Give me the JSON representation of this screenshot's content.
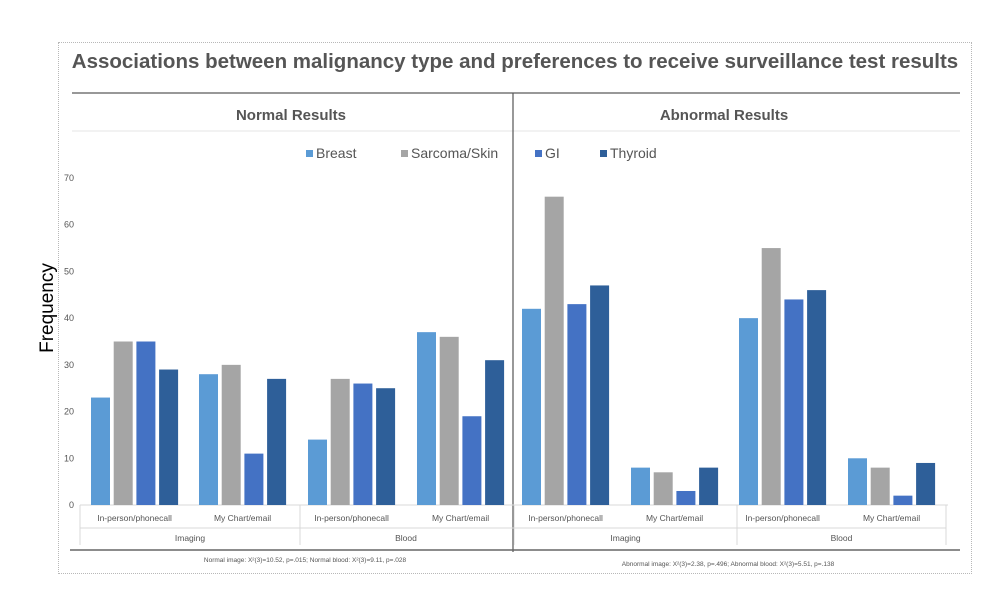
{
  "title": "Associations between malignancy type and preferences to receive surveillance test results",
  "chart_data": {
    "type": "bar",
    "ylabel": "Frequency",
    "ylim": [
      0,
      70
    ],
    "yticks": [
      0,
      10,
      20,
      30,
      40,
      50,
      60,
      70
    ],
    "legend_position": "top-center",
    "series": [
      {
        "name": "Breast",
        "color": "#5b9bd5"
      },
      {
        "name": "Sarcoma/Skin",
        "color": "#a5a5a5"
      },
      {
        "name": "GI",
        "color": "#4472c4"
      },
      {
        "name": "Thyroid",
        "color": "#2e5f99"
      }
    ],
    "panels": [
      {
        "title": "Normal Results",
        "stats": "Normal image: X²(3)=10.52, p=.015; Normal blood: X²(3)=9.11, p=.028",
        "groups": [
          {
            "name": "Imaging",
            "categories": [
              {
                "label": "In-person/phonecall",
                "values": [
                  23,
                  35,
                  35,
                  29
                ]
              },
              {
                "label": "My Chart/email",
                "values": [
                  28,
                  30,
                  11,
                  27
                ]
              }
            ]
          },
          {
            "name": "Blood",
            "categories": [
              {
                "label": "In-person/phonecall",
                "values": [
                  14,
                  27,
                  26,
                  25
                ]
              },
              {
                "label": "My Chart/email",
                "values": [
                  37,
                  36,
                  19,
                  31
                ]
              }
            ]
          }
        ]
      },
      {
        "title": "Abnormal Results",
        "stats": "Abnormal image: X²(3)=2.38, p=.496; Abnormal blood: X²(3)=5.51, p=.138",
        "groups": [
          {
            "name": "Imaging",
            "categories": [
              {
                "label": "In-person/phonecall",
                "values": [
                  42,
                  66,
                  43,
                  47
                ]
              },
              {
                "label": "My Chart/email",
                "values": [
                  8,
                  7,
                  3,
                  8
                ]
              }
            ]
          },
          {
            "name": "Blood",
            "categories": [
              {
                "label": "In-person/phonecall",
                "values": [
                  40,
                  55,
                  44,
                  46
                ]
              },
              {
                "label": "My Chart/email",
                "values": [
                  10,
                  8,
                  2,
                  9
                ]
              }
            ]
          }
        ]
      }
    ]
  }
}
